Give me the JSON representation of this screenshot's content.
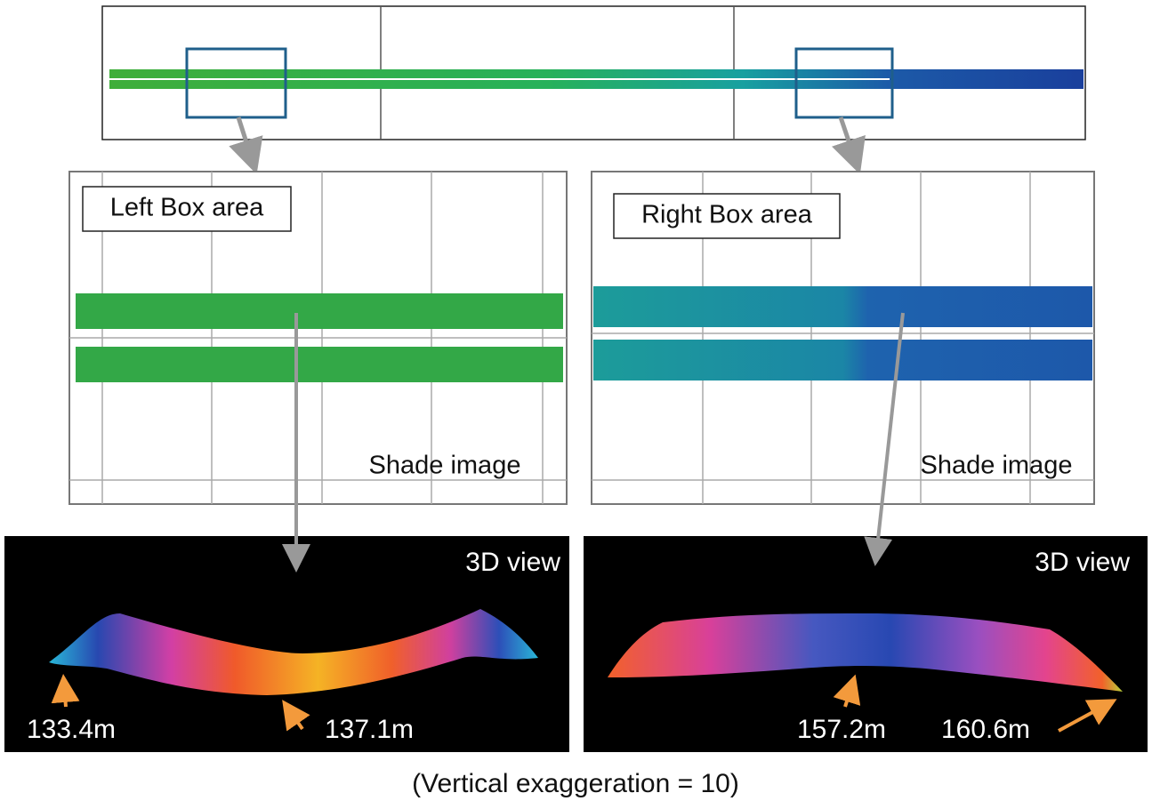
{
  "panels": [
    {
      "label": "Left Box area",
      "shade_label": "Shade image",
      "view_label": "3D view",
      "elevations": [
        "133.4m",
        "137.1m"
      ]
    },
    {
      "label": "Right Box area",
      "shade_label": "Shade image",
      "view_label": "3D view",
      "elevations": [
        "157.2m",
        "160.6m"
      ]
    }
  ],
  "caption": "(Vertical exaggeration = 10)"
}
